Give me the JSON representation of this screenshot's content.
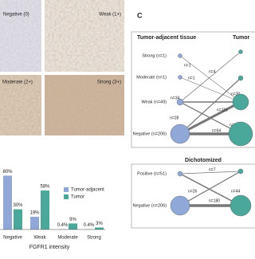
{
  "images": [
    {
      "label": "Negative (0)"
    },
    {
      "label": "Weak (1+)"
    },
    {
      "label": "Moderate (2+)"
    },
    {
      "label": "Strong (3+)"
    }
  ],
  "chart_data": {
    "type": "bar",
    "xlabel": "FGFR1 intensity",
    "categories": [
      "Negative",
      "Weak",
      "Moderate",
      "Strong"
    ],
    "series": [
      {
        "name": "Tumor-adjacent",
        "color": "#8fa8d8",
        "values": [
          80,
          19,
          0.4,
          0.4
        ],
        "value_labels": [
          "80%",
          "19%",
          "0.4%",
          "0.4%"
        ]
      },
      {
        "name": "Tumor",
        "color": "#4aa89a",
        "values": [
          30,
          58,
          9,
          3
        ],
        "value_labels": [
          "30%",
          "58%",
          "9%",
          "3%"
        ]
      }
    ],
    "ylim": [
      0,
      90
    ]
  },
  "diagram": {
    "panel_letter": "C",
    "left_title": "Tumor-adjacent tissue",
    "right_title": "Tumor",
    "network": {
      "nodes": [
        "Strong (n=1)",
        "Moderate (n=1)",
        "Weak (n=49)",
        "Negative (n=206)"
      ],
      "edges": [
        "n=1",
        "n=1",
        "n=4",
        "n=30",
        "n=34",
        "n=116",
        "n=8",
        "n=28",
        "n=64"
      ]
    },
    "dichotomized": {
      "title": "Dichotomized",
      "nodes": [
        "Positive (n=51)",
        "Negative (n=206)"
      ],
      "edges": [
        "n=7",
        "n=26",
        "n=44",
        "n=180"
      ]
    }
  }
}
